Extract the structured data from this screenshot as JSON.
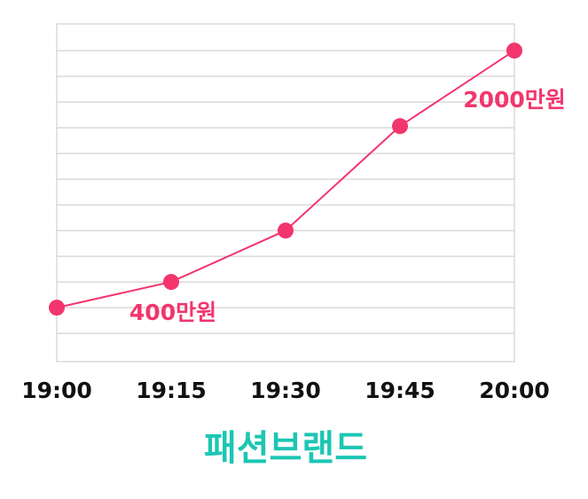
{
  "chart_data": {
    "type": "line",
    "title": "패션브랜드",
    "categories": [
      "19:00",
      "19:15",
      "19:30",
      "19:45",
      "20:00"
    ],
    "series": [
      {
        "color": "#f2356d",
        "values": [
          400,
          560,
          880,
          1530,
          2000
        ],
        "value_labels": [
          "400만원",
          null,
          null,
          null,
          "2000만원"
        ]
      }
    ],
    "ylim": [
      64,
      2166
    ],
    "yticks": [
      240,
      400,
      560,
      720,
      880,
      1040,
      1200,
      1360,
      1520,
      1680,
      1840,
      2000
    ],
    "grid": true,
    "title_color": "#1cc6b3"
  }
}
